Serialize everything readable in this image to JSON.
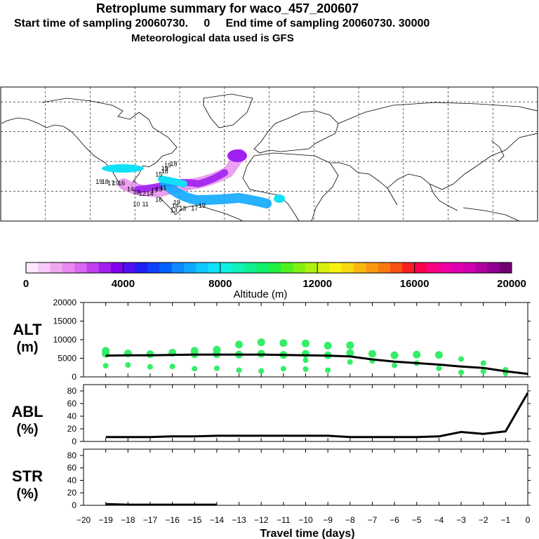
{
  "header": {
    "title": "Retroplume summary for waco_457_200607",
    "subtitle_start": "Start time of sampling 20060730.     0     End time of sampling 20060730. 30000",
    "subtitle_met": "Meteorological data used is GFS"
  },
  "colors": {
    "marker": "#33ee66",
    "line": "#000000",
    "colorbar": [
      "#ffe8ff",
      "#f8c8f8",
      "#f0a8f0",
      "#e888f0",
      "#d868f0",
      "#c040f0",
      "#a020f0",
      "#8000f0",
      "#5010f0",
      "#2020f0",
      "#1040f8",
      "#0060ff",
      "#1088ff",
      "#10a8ff",
      "#10c8ff",
      "#10e0f8",
      "#10f0e0",
      "#10f0b8",
      "#10f090",
      "#10f068",
      "#20f040",
      "#50f020",
      "#80f010",
      "#b0f010",
      "#d8f010",
      "#f8f010",
      "#f8d810",
      "#f8b810",
      "#f89810",
      "#f87810",
      "#f85010",
      "#f82020",
      "#f80050",
      "#f80080",
      "#f000a0",
      "#e000b0",
      "#d000b0",
      "#b000a0",
      "#900090",
      "#700070"
    ]
  },
  "map": {
    "labels": [
      {
        "t": "19",
        "lon": -68,
        "lat": 36
      },
      {
        "t": "18",
        "lon": -64,
        "lat": 37
      },
      {
        "t": "19",
        "lon": -70,
        "lat": 34
      },
      {
        "t": "18",
        "lon": -70,
        "lat": 32
      },
      {
        "t": "15",
        "lon": -74,
        "lat": 30
      },
      {
        "t": "19",
        "lon": -114,
        "lat": 25
      },
      {
        "t": "18",
        "lon": -110,
        "lat": 25
      },
      {
        "t": "17",
        "lon": -106,
        "lat": 24
      },
      {
        "t": "19",
        "lon": -103,
        "lat": 24
      },
      {
        "t": "16",
        "lon": -99,
        "lat": 24
      },
      {
        "t": "14",
        "lon": -93,
        "lat": 20
      },
      {
        "t": "13",
        "lon": -89,
        "lat": 18
      },
      {
        "t": "12",
        "lon": -85,
        "lat": 17
      },
      {
        "t": "14",
        "lon": -80,
        "lat": 17
      },
      {
        "t": "17",
        "lon": -77,
        "lat": 19
      },
      {
        "t": "13",
        "lon": -74,
        "lat": 20
      },
      {
        "t": "11",
        "lon": -71,
        "lat": 21
      },
      {
        "t": "10",
        "lon": -89,
        "lat": 10
      },
      {
        "t": "11",
        "lon": -83,
        "lat": 10
      },
      {
        "t": "16",
        "lon": -74,
        "lat": 13
      },
      {
        "t": "14",
        "lon": -63,
        "lat": 9
      },
      {
        "t": "19",
        "lon": -62,
        "lat": 11
      },
      {
        "t": "13",
        "lon": -58,
        "lat": 7
      },
      {
        "t": "13",
        "lon": -64,
        "lat": 6
      },
      {
        "t": "17",
        "lon": -50,
        "lat": 7
      },
      {
        "t": "19",
        "lon": -45,
        "lat": 9
      }
    ]
  },
  "colorbar_labels": [
    "0",
    "4000",
    "8000",
    "12000",
    "16000",
    "20000"
  ],
  "colorbar_title": "Altitude (m)",
  "panels": {
    "alt": {
      "label1": "ALT",
      "label2": "(m)",
      "ticks": [
        "0",
        "5000",
        "10000",
        "15000",
        "20000"
      ]
    },
    "abl": {
      "label1": "ABL",
      "label2": "(%)",
      "ticks": [
        "0",
        "20",
        "40",
        "60",
        "80"
      ]
    },
    "str": {
      "label1": "STR",
      "label2": "(%)",
      "ticks": [
        "0",
        "20",
        "40",
        "60",
        "80"
      ]
    }
  },
  "xaxis": {
    "title": "Travel time (days)",
    "ticks": [
      "−20",
      "−19",
      "−18",
      "−17",
      "−16",
      "−15",
      "−14",
      "−13",
      "−12",
      "−11",
      "−10",
      "−9",
      "−8",
      "−7",
      "−6",
      "−5",
      "−4",
      "−3",
      "−2",
      "−1",
      "0"
    ]
  },
  "chart_data": [
    {
      "type": "scatter",
      "title": "ALT (m)",
      "xlabel": "Travel time (days)",
      "ylabel": "ALT (m)",
      "xlim": [
        -20,
        0
      ],
      "ylim": [
        0,
        20000
      ],
      "series": [
        {
          "name": "mean altitude (line)",
          "x": [
            -19,
            -18,
            -17,
            -16,
            -15,
            -14,
            -13,
            -12,
            -11,
            -10,
            -9,
            -8,
            -7,
            -6,
            -5,
            -4,
            -3,
            -2,
            -1,
            0
          ],
          "values": [
            5700,
            5800,
            5800,
            5900,
            6000,
            6000,
            6000,
            6000,
            5900,
            5800,
            5700,
            5500,
            4700,
            4100,
            3700,
            3300,
            2800,
            2400,
            1500,
            800
          ]
        },
        {
          "name": "plume altitudes (points)",
          "points": [
            [
              -19,
              7000
            ],
            [
              -19,
              6200
            ],
            [
              -19,
              3000
            ],
            [
              -18,
              6300
            ],
            [
              -18,
              3200
            ],
            [
              -17,
              6100
            ],
            [
              -17,
              2700
            ],
            [
              -16,
              6500
            ],
            [
              -16,
              2800
            ],
            [
              -15,
              7000
            ],
            [
              -15,
              6100
            ],
            [
              -15,
              2200
            ],
            [
              -14,
              7300
            ],
            [
              -14,
              6100
            ],
            [
              -14,
              2300
            ],
            [
              -13,
              8700
            ],
            [
              -13,
              6000
            ],
            [
              -13,
              1800
            ],
            [
              -12,
              9300
            ],
            [
              -12,
              6200
            ],
            [
              -12,
              1600
            ],
            [
              -11,
              9100
            ],
            [
              -11,
              5900
            ],
            [
              -11,
              2200
            ],
            [
              -10,
              9000
            ],
            [
              -10,
              6200
            ],
            [
              -10,
              4500
            ],
            [
              -10,
              2100
            ],
            [
              -9,
              8400
            ],
            [
              -9,
              5800
            ],
            [
              -9,
              1800
            ],
            [
              -8,
              8500
            ],
            [
              -8,
              6400
            ],
            [
              -8,
              4000
            ],
            [
              -7,
              6200
            ],
            [
              -7,
              4300
            ],
            [
              -6,
              5800
            ],
            [
              -6,
              3100
            ],
            [
              -5,
              6000
            ],
            [
              -5,
              3700
            ],
            [
              -4,
              5900
            ],
            [
              -4,
              2300
            ],
            [
              -3,
              4800
            ],
            [
              -3,
              1200
            ],
            [
              -2,
              3700
            ],
            [
              -2,
              1500
            ],
            [
              -1,
              1900
            ],
            [
              -1,
              1000
            ]
          ]
        }
      ]
    },
    {
      "type": "line",
      "title": "ABL (%)",
      "xlabel": "Travel time (days)",
      "ylabel": "ABL (%)",
      "xlim": [
        -20,
        0
      ],
      "ylim": [
        0,
        90
      ],
      "x": [
        -19,
        -18,
        -17,
        -16,
        -15,
        -14,
        -13,
        -12,
        -11,
        -10,
        -9,
        -8,
        -7,
        -6,
        -5,
        -4,
        -3,
        -2,
        -1,
        0
      ],
      "values": [
        7,
        7,
        7,
        8,
        8,
        9,
        9,
        9,
        9,
        9,
        9,
        7,
        7,
        7,
        7,
        8,
        15,
        12,
        16,
        77
      ]
    },
    {
      "type": "line",
      "title": "STR (%)",
      "xlabel": "Travel time (days)",
      "ylabel": "STR (%)",
      "xlim": [
        -20,
        0
      ],
      "ylim": [
        0,
        90
      ],
      "x": [
        -19,
        -18,
        -17,
        -16,
        -15,
        -14
      ],
      "values": [
        2,
        1,
        1,
        1,
        1,
        1
      ]
    }
  ]
}
